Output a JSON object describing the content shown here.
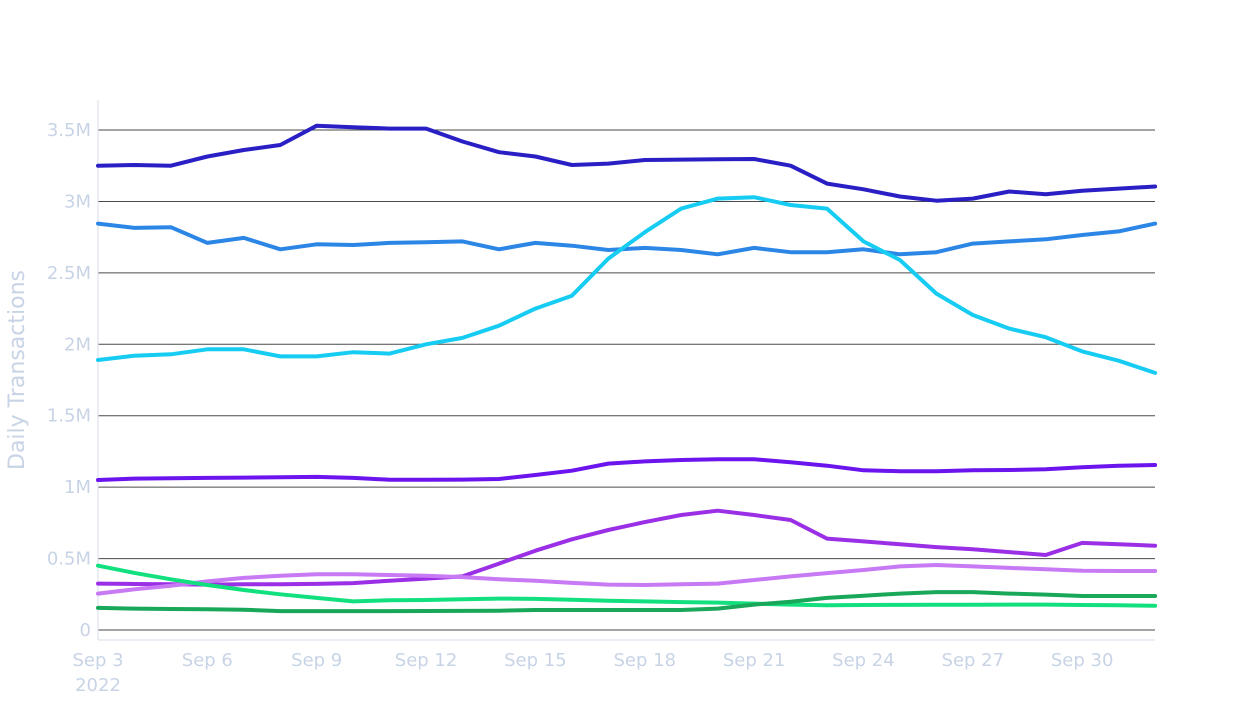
{
  "chart_data": {
    "type": "line",
    "title": "",
    "ylabel": "Daily Transactions",
    "xlabel": "",
    "ylim": [
      -50000,
      3700000
    ],
    "x_start_date": "2022-09-03",
    "x_range_days": [
      0,
      29
    ],
    "y_ticks": [
      {
        "value": 0,
        "label": "0"
      },
      {
        "value": 500000,
        "label": "0.5M"
      },
      {
        "value": 1000000,
        "label": "1M"
      },
      {
        "value": 1500000,
        "label": "1.5M"
      },
      {
        "value": 2000000,
        "label": "2M"
      },
      {
        "value": 2500000,
        "label": "2.5M"
      },
      {
        "value": 3000000,
        "label": "3M"
      },
      {
        "value": 3500000,
        "label": "3.5M"
      }
    ],
    "x_ticks": [
      {
        "day": 0,
        "label": "Sep 3",
        "sublabel": "2022"
      },
      {
        "day": 3,
        "label": "Sep 6",
        "sublabel": ""
      },
      {
        "day": 6,
        "label": "Sep 9",
        "sublabel": ""
      },
      {
        "day": 9,
        "label": "Sep 12",
        "sublabel": ""
      },
      {
        "day": 12,
        "label": "Sep 15",
        "sublabel": ""
      },
      {
        "day": 15,
        "label": "Sep 18",
        "sublabel": ""
      },
      {
        "day": 18,
        "label": "Sep 21",
        "sublabel": ""
      },
      {
        "day": 21,
        "label": "Sep 24",
        "sublabel": ""
      },
      {
        "day": 24,
        "label": "Sep 27",
        "sublabel": ""
      },
      {
        "day": 27,
        "label": "Sep 30",
        "sublabel": ""
      }
    ],
    "grid": true,
    "legend": "none",
    "series": [
      {
        "color": "#2a1fc4",
        "values": [
          3250000,
          3255000,
          3250000,
          3315000,
          3360000,
          3395000,
          3530000,
          3520000,
          3510000,
          3510000,
          3420000,
          3345000,
          3315000,
          3255000,
          3265000,
          3290000,
          3293000,
          3295000,
          3297000,
          3250000,
          3125000,
          3085000,
          3035000,
          3005000,
          3020000,
          3070000,
          3050000,
          3075000,
          3090000,
          3105000
        ]
      },
      {
        "color": "#2b86e6",
        "values": [
          2845000,
          2815000,
          2820000,
          2710000,
          2745000,
          2665000,
          2700000,
          2695000,
          2710000,
          2715000,
          2720000,
          2665000,
          2710000,
          2690000,
          2660000,
          2675000,
          2660000,
          2630000,
          2675000,
          2645000,
          2645000,
          2665000,
          2630000,
          2645000,
          2705000,
          2720000,
          2735000,
          2765000,
          2790000,
          2845000
        ]
      },
      {
        "color": "#16ccf2",
        "values": [
          1890000,
          1920000,
          1930000,
          1965000,
          1965000,
          1915000,
          1915000,
          1945000,
          1935000,
          2000000,
          2045000,
          2130000,
          2250000,
          2340000,
          2600000,
          2785000,
          2950000,
          3020000,
          3030000,
          2975000,
          2950000,
          2720000,
          2590000,
          2355000,
          2205000,
          2110000,
          2050000,
          1950000,
          1885000,
          1800000
        ]
      },
      {
        "color": "#6b14ee",
        "values": [
          1050000,
          1060000,
          1062000,
          1065000,
          1067000,
          1070000,
          1072000,
          1065000,
          1052000,
          1052000,
          1053000,
          1057000,
          1085000,
          1115000,
          1165000,
          1180000,
          1190000,
          1195000,
          1195000,
          1175000,
          1150000,
          1118000,
          1112000,
          1112000,
          1118000,
          1120000,
          1125000,
          1140000,
          1150000,
          1155000
        ]
      },
      {
        "color": "#9b2fe6",
        "values": [
          325000,
          322000,
          320000,
          318000,
          320000,
          320000,
          323000,
          328000,
          345000,
          360000,
          375000,
          465000,
          555000,
          635000,
          700000,
          755000,
          805000,
          835000,
          805000,
          770000,
          640000,
          620000,
          600000,
          580000,
          565000,
          545000,
          525000,
          610000,
          600000,
          590000
        ]
      },
      {
        "color": "#c879f4",
        "values": [
          255000,
          285000,
          310000,
          340000,
          365000,
          380000,
          390000,
          390000,
          385000,
          380000,
          370000,
          355000,
          345000,
          330000,
          318000,
          315000,
          320000,
          325000,
          350000,
          375000,
          398000,
          420000,
          445000,
          455000,
          445000,
          435000,
          425000,
          415000,
          413000,
          413000
        ]
      },
      {
        "color": "#12e07e",
        "values": [
          450000,
          400000,
          355000,
          315000,
          280000,
          250000,
          225000,
          200000,
          208000,
          210000,
          215000,
          220000,
          218000,
          212000,
          205000,
          200000,
          195000,
          192000,
          185000,
          178000,
          173000,
          175000,
          176000,
          177000,
          177000,
          178000,
          178000,
          175000,
          173000,
          170000
        ]
      },
      {
        "color": "#19a85a",
        "values": [
          155000,
          150000,
          147000,
          145000,
          142000,
          132000,
          132000,
          132000,
          132000,
          133000,
          134000,
          135000,
          140000,
          140000,
          140000,
          140000,
          140000,
          150000,
          178000,
          198000,
          225000,
          240000,
          255000,
          265000,
          265000,
          255000,
          248000,
          238000,
          238000,
          238000
        ]
      }
    ]
  }
}
